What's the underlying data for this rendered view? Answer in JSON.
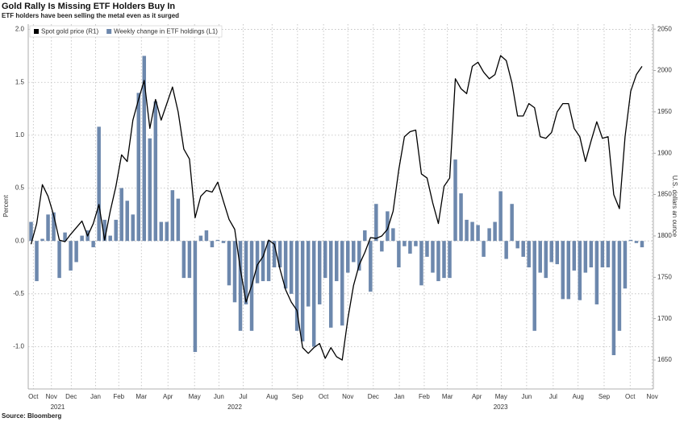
{
  "chart_data": {
    "type": "combo",
    "title": "Gold Rally Is Missing ETF Holders Buy In",
    "subtitle": "ETF holders have been selling the metal even as it surged",
    "source": "Source: Bloomberg",
    "y_label": "Percent",
    "y2_label": "U.S. dollars an ounce",
    "x": [
      0,
      1,
      2,
      3,
      4,
      5,
      6,
      7,
      8,
      9,
      10,
      11,
      12,
      13,
      14,
      15,
      16,
      17,
      18,
      19,
      20,
      21,
      22,
      23,
      24,
      25,
      26,
      27,
      28,
      29,
      30,
      31,
      32,
      33,
      34,
      35,
      36,
      37,
      38,
      39,
      40,
      41,
      42,
      43,
      44,
      45,
      46,
      47,
      48,
      49,
      50,
      51,
      52,
      53,
      54,
      55,
      56,
      57,
      58,
      59,
      60,
      61,
      62,
      63,
      64,
      65,
      66,
      67,
      68,
      69,
      70,
      71,
      72,
      73,
      74,
      75,
      76,
      77,
      78,
      79,
      80,
      81,
      82,
      83,
      84,
      85,
      86,
      87,
      88,
      89,
      90,
      91,
      92,
      93,
      94,
      95,
      96,
      97,
      98,
      99,
      100,
      101,
      102,
      103,
      104,
      105,
      106,
      107,
      108
    ],
    "xlim": [
      -0.5,
      110
    ],
    "xticks": [
      {
        "value": 0.4,
        "label": "Oct"
      },
      {
        "value": 3.6,
        "label": "Nov"
      },
      {
        "value": 7.1,
        "label": "Dec"
      },
      {
        "value": 11.4,
        "label": "Jan"
      },
      {
        "value": 15.5,
        "label": "Feb"
      },
      {
        "value": 19.5,
        "label": "Mar"
      },
      {
        "value": 24.2,
        "label": "Apr"
      },
      {
        "value": 28.9,
        "label": "May"
      },
      {
        "value": 33.2,
        "label": "Jun"
      },
      {
        "value": 37.5,
        "label": "Jul"
      },
      {
        "value": 42.6,
        "label": "Aug"
      },
      {
        "value": 47.1,
        "label": "Sep"
      },
      {
        "value": 51.7,
        "label": "Oct"
      },
      {
        "value": 56,
        "label": "Nov"
      },
      {
        "value": 60.5,
        "label": "Dec"
      },
      {
        "value": 65.1,
        "label": "Jan"
      },
      {
        "value": 69.5,
        "label": "Feb"
      },
      {
        "value": 73.6,
        "label": "Mar"
      },
      {
        "value": 78.8,
        "label": "Apr"
      },
      {
        "value": 83.1,
        "label": "May"
      },
      {
        "value": 87.6,
        "label": "Jun"
      },
      {
        "value": 92.3,
        "label": "Jul"
      },
      {
        "value": 96.7,
        "label": "Aug"
      },
      {
        "value": 101.3,
        "label": "Sep"
      },
      {
        "value": 105.9,
        "label": "Oct"
      },
      {
        "value": 109.8,
        "label": "Nov"
      }
    ],
    "year_labels": [
      {
        "value": 4.7,
        "label": "2021"
      },
      {
        "value": 36,
        "label": "2022"
      },
      {
        "value": 83,
        "label": "2023"
      }
    ],
    "ylim": [
      -1.4,
      2.05
    ],
    "yticks": [
      {
        "value": -1,
        "label": "-1.0"
      },
      {
        "value": -0.5,
        "label": "-0.5"
      },
      {
        "value": 0,
        "label": "0.0"
      },
      {
        "value": 0.5,
        "label": "0.5"
      },
      {
        "value": 1,
        "label": "1.0"
      },
      {
        "value": 1.5,
        "label": "1.5"
      },
      {
        "value": 2,
        "label": "2.0"
      }
    ],
    "y2lim": [
      1615,
      2056
    ],
    "y2ticks": [
      1650,
      1700,
      1750,
      1800,
      1850,
      1900,
      1950,
      2000,
      2050
    ],
    "grid": true,
    "legend": "top-left",
    "series": [
      {
        "name": "Spot gold price (R1)",
        "type": "line",
        "axis": "y2",
        "color": "#000000",
        "values": [
          1790,
          1815,
          1862,
          1848,
          1825,
          1795,
          1793,
          1802,
          1810,
          1818,
          1800,
          1815,
          1838,
          1795,
          1830,
          1860,
          1898,
          1890,
          1940,
          1965,
          1988,
          1930,
          1965,
          1940,
          1960,
          1980,
          1950,
          1905,
          1893,
          1822,
          1848,
          1855,
          1853,
          1865,
          1842,
          1820,
          1808,
          1760,
          1720,
          1740,
          1765,
          1775,
          1795,
          1790,
          1760,
          1735,
          1720,
          1710,
          1665,
          1658,
          1665,
          1670,
          1652,
          1665,
          1654,
          1650,
          1700,
          1740,
          1765,
          1780,
          1798,
          1797,
          1800,
          1808,
          1830,
          1880,
          1920,
          1926,
          1928,
          1875,
          1870,
          1840,
          1815,
          1860,
          1870,
          1990,
          1978,
          1972,
          2005,
          2010,
          1998,
          1990,
          1995,
          2018,
          2012,
          1985,
          1945,
          1945,
          1960,
          1955,
          1920,
          1918,
          1925,
          1950,
          1960,
          1960,
          1930,
          1920,
          1890,
          1915,
          1938,
          1918,
          1920,
          1850,
          1833,
          1920,
          1975,
          1995,
          2005
        ]
      },
      {
        "name": "Weekly change in ETF holdings (L1)",
        "type": "bar",
        "axis": "y",
        "color": "#6d88ad",
        "values": [
          0.18,
          -0.38,
          0.02,
          0.25,
          0.27,
          -0.35,
          0.08,
          -0.28,
          -0.2,
          0.05,
          0.1,
          -0.06,
          1.08,
          0.2,
          0.05,
          0.2,
          0.5,
          0.38,
          0.25,
          1.4,
          1.75,
          0.97,
          1.32,
          0.18,
          0.18,
          0.48,
          0.4,
          -0.35,
          -0.35,
          -1.05,
          0.05,
          0.1,
          -0.06,
          0.01,
          -0.02,
          -0.42,
          -0.58,
          -0.85,
          -0.6,
          -0.85,
          -0.4,
          -0.38,
          -0.38,
          -0.25,
          -0.25,
          -0.45,
          -0.5,
          -0.85,
          -0.95,
          -0.62,
          -1.0,
          -0.6,
          -0.35,
          -0.82,
          -0.38,
          -0.8,
          -0.3,
          -0.2,
          -0.28,
          0.1,
          -0.48,
          0.35,
          -0.1,
          0.28,
          0.12,
          -0.25,
          -0.05,
          -0.12,
          -0.05,
          -0.42,
          -0.15,
          -0.3,
          -0.38,
          -0.35,
          -0.35,
          0.77,
          0.45,
          0.2,
          0.18,
          0.15,
          -0.15,
          0.12,
          0.18,
          0.47,
          -0.17,
          0.35,
          -0.07,
          -0.15,
          -0.25,
          -0.85,
          -0.3,
          -0.35,
          -0.2,
          -0.22,
          -0.55,
          -0.55,
          -0.28,
          -0.56,
          -0.3,
          -0.25,
          -0.6,
          -0.25,
          -0.25,
          -1.08,
          -0.85,
          -0.45,
          0.01,
          -0.02,
          -0.06
        ]
      }
    ]
  }
}
